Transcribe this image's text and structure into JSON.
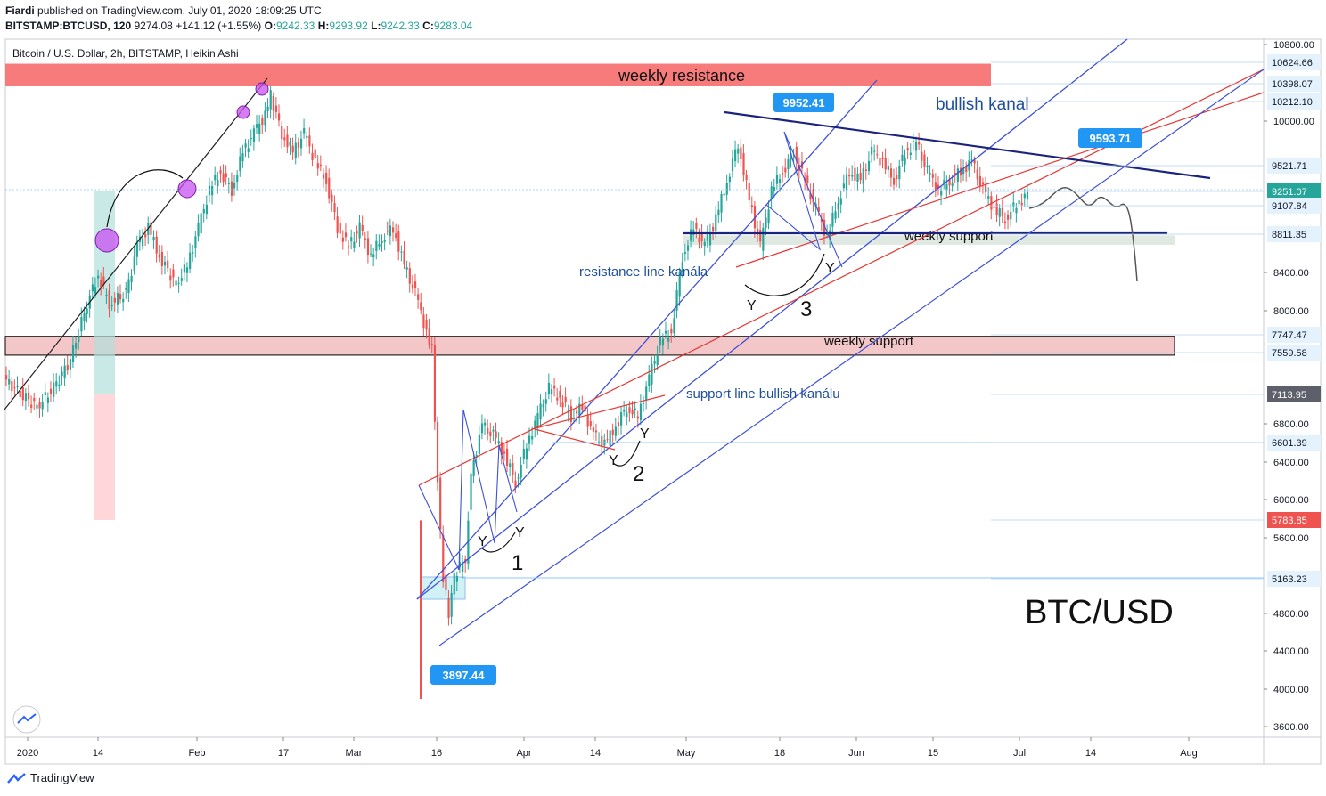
{
  "header": {
    "author": "Fiardi",
    "published": "published on TradingView.com, July 01, 2020 18:09:25 UTC",
    "symbol": "BITSTAMP:BTCUSD, 120",
    "last": "9274.08",
    "change": "+141.12 (+1.55%)",
    "o_label": "O:",
    "o": "9242.33",
    "h_label": "H:",
    "h": "9293.92",
    "l_label": "L:",
    "l": "9242.33",
    "c_label": "C:",
    "c": "9283.04"
  },
  "footer": {
    "brand": "TradingView"
  },
  "colors": {
    "up": "#26a69a",
    "down": "#ef5350",
    "channel": "#3f51d6",
    "red_line": "#e53935",
    "navy": "#1a237e",
    "callout": "#2196f3"
  },
  "chart_data": {
    "type": "candlestick",
    "title": "Bitcoin / U.S. Dollar, 2h, BITSTAMP, Heikin Ashi",
    "watermark": "BTC/USD",
    "x_ticks": [
      "2020",
      "14",
      "Feb",
      "17",
      "Mar",
      "16",
      "Apr",
      "14",
      "May",
      "18",
      "Jun",
      "15",
      "Jul",
      "14",
      "Aug"
    ],
    "y_ticks": [
      "10800.00",
      "10000.00",
      "8400.00",
      "8000.00",
      "6800.00",
      "6400.00",
      "6000.00",
      "5600.00",
      "4800.00",
      "4400.00",
      "4000.00",
      "3600.00"
    ],
    "ylim": [
      3500,
      10900
    ],
    "price_labels": [
      {
        "text": "10624.66",
        "value": 10624.66,
        "style": "light"
      },
      {
        "text": "10398.07",
        "value": 10398.07,
        "style": "light"
      },
      {
        "text": "10212.10",
        "value": 10212.1,
        "style": "light"
      },
      {
        "text": "9521.71",
        "value": 9521.71,
        "style": "light"
      },
      {
        "text": "9251.07",
        "value": 9251.07,
        "style": "teal"
      },
      {
        "text": "9107.84",
        "value": 9107.84,
        "style": "light"
      },
      {
        "text": "8811.35",
        "value": 8811.35,
        "style": "light"
      },
      {
        "text": "7747.47",
        "value": 7747.47,
        "style": "light"
      },
      {
        "text": "7559.58",
        "value": 7559.58,
        "style": "light"
      },
      {
        "text": "7113.95",
        "value": 7113.95,
        "style": "gray"
      },
      {
        "text": "6601.39",
        "value": 6601.39,
        "style": "light"
      },
      {
        "text": "5783.85",
        "value": 5783.85,
        "style": "red"
      },
      {
        "text": "5163.23",
        "value": 5163.23,
        "style": "light"
      }
    ],
    "zones": [
      {
        "label": "weekly resistance",
        "from": 10400,
        "to": 10640,
        "color": "#f77b7b"
      },
      {
        "label": "weekly support",
        "from": 7550,
        "to": 7750,
        "color": "#f3c6c8"
      },
      {
        "label": "weekly support",
        "from": 8720,
        "to": 8820,
        "color": "#dfe9e2"
      }
    ],
    "annotations": [
      {
        "text": "bullish kanal"
      },
      {
        "text": "resistance line kanála"
      },
      {
        "text": "support line bullish kanálu"
      },
      {
        "text": "1"
      },
      {
        "text": "2"
      },
      {
        "text": "3"
      },
      {
        "text": "Y"
      }
    ],
    "callouts": [
      {
        "text": "9952.41",
        "value": 9952.41
      },
      {
        "text": "9593.71",
        "value": 9593.71
      },
      {
        "text": "3897.44",
        "value": 3897.44
      }
    ],
    "price_path": [
      [
        0,
        7300
      ],
      [
        3,
        7150
      ],
      [
        6,
        7000
      ],
      [
        9,
        7200
      ],
      [
        12,
        7500
      ],
      [
        15,
        8100
      ],
      [
        17,
        8400
      ],
      [
        19,
        8100
      ],
      [
        22,
        8200
      ],
      [
        24,
        8700
      ],
      [
        26,
        8900
      ],
      [
        28,
        8600
      ],
      [
        31,
        8300
      ],
      [
        33,
        8500
      ],
      [
        35,
        8900
      ],
      [
        37,
        9300
      ],
      [
        39,
        9500
      ],
      [
        41,
        9300
      ],
      [
        43,
        9700
      ],
      [
        45,
        9900
      ],
      [
        47,
        10100
      ],
      [
        48,
        10300
      ],
      [
        50,
        9900
      ],
      [
        52,
        9700
      ],
      [
        54,
        9900
      ],
      [
        56,
        9600
      ],
      [
        58,
        9400
      ],
      [
        60,
        8900
      ],
      [
        62,
        8700
      ],
      [
        64,
        8900
      ],
      [
        66,
        8600
      ],
      [
        68,
        8800
      ],
      [
        70,
        8900
      ],
      [
        72,
        8500
      ],
      [
        74,
        8200
      ],
      [
        76,
        7800
      ],
      [
        77,
        7600
      ],
      [
        78,
        6200
      ],
      [
        79,
        5200
      ],
      [
        80,
        4800
      ],
      [
        81,
        5200
      ],
      [
        83,
        5400
      ],
      [
        84,
        6300
      ],
      [
        86,
        6800
      ],
      [
        88,
        6700
      ],
      [
        90,
        6500
      ],
      [
        92,
        6200
      ],
      [
        94,
        6600
      ],
      [
        96,
        6900
      ],
      [
        98,
        7200
      ],
      [
        100,
        7100
      ],
      [
        102,
        6900
      ],
      [
        104,
        7000
      ],
      [
        106,
        6700
      ],
      [
        108,
        6600
      ],
      [
        110,
        6800
      ],
      [
        112,
        7000
      ],
      [
        114,
        6900
      ],
      [
        116,
        7300
      ],
      [
        118,
        7700
      ],
      [
        120,
        7800
      ],
      [
        122,
        8600
      ],
      [
        124,
        8900
      ],
      [
        126,
        8700
      ],
      [
        128,
        9000
      ],
      [
        130,
        9400
      ],
      [
        132,
        9800
      ],
      [
        134,
        9200
      ],
      [
        136,
        8700
      ],
      [
        138,
        9300
      ],
      [
        140,
        9500
      ],
      [
        142,
        9700
      ],
      [
        144,
        9400
      ],
      [
        146,
        9100
      ],
      [
        148,
        8800
      ],
      [
        150,
        9200
      ],
      [
        152,
        9500
      ],
      [
        154,
        9400
      ],
      [
        156,
        9700
      ],
      [
        158,
        9600
      ],
      [
        160,
        9400
      ],
      [
        162,
        9700
      ],
      [
        164,
        9800
      ],
      [
        166,
        9500
      ],
      [
        168,
        9300
      ],
      [
        170,
        9400
      ],
      [
        172,
        9500
      ],
      [
        174,
        9600
      ],
      [
        176,
        9300
      ],
      [
        178,
        9100
      ],
      [
        180,
        9000
      ],
      [
        182,
        9150
      ],
      [
        184,
        9250
      ]
    ]
  }
}
